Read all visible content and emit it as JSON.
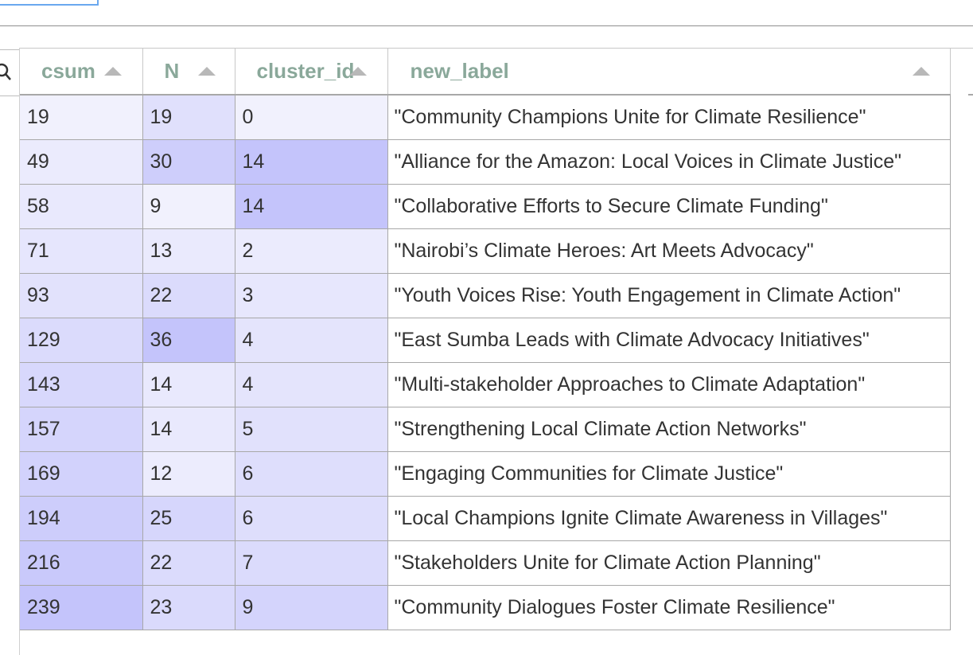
{
  "table": {
    "columns": [
      {
        "key": "csum",
        "label": "csum"
      },
      {
        "key": "N",
        "label": "N"
      },
      {
        "key": "cluster_id",
        "label": "cluster_id"
      },
      {
        "key": "new_label",
        "label": "new_label"
      }
    ],
    "rows": [
      {
        "csum": "19",
        "N": "19",
        "cluster_id": "0",
        "new_label": "\"Community Champions Unite for Climate Resilience\""
      },
      {
        "csum": "49",
        "N": "30",
        "cluster_id": "14",
        "new_label": "\"Alliance for the Amazon: Local Voices in Climate Justice\""
      },
      {
        "csum": "58",
        "N": "9",
        "cluster_id": "14",
        "new_label": "\"Collaborative Efforts to Secure Climate Funding\""
      },
      {
        "csum": "71",
        "N": "13",
        "cluster_id": "2",
        "new_label": "\"Nairobi’s Climate Heroes: Art Meets Advocacy\""
      },
      {
        "csum": "93",
        "N": "22",
        "cluster_id": "3",
        "new_label": "\"Youth Voices Rise: Youth Engagement in Climate Action\""
      },
      {
        "csum": "129",
        "N": "36",
        "cluster_id": "4",
        "new_label": "\"East Sumba Leads with Climate Advocacy Initiatives\""
      },
      {
        "csum": "143",
        "N": "14",
        "cluster_id": "4",
        "new_label": "\"Multi-stakeholder Approaches to Climate Adaptation\""
      },
      {
        "csum": "157",
        "N": "14",
        "cluster_id": "5",
        "new_label": "\"Strengthening Local Climate Action Networks\""
      },
      {
        "csum": "169",
        "N": "12",
        "cluster_id": "6",
        "new_label": "\"Engaging Communities for Climate Justice\""
      },
      {
        "csum": "194",
        "N": "25",
        "cluster_id": "6",
        "new_label": "\"Local Champions Ignite Climate Awareness in Villages\""
      },
      {
        "csum": "216",
        "N": "22",
        "cluster_id": "7",
        "new_label": "\"Stakeholders Unite for Climate Action Planning\""
      },
      {
        "csum": "239",
        "N": "23",
        "cluster_id": "9",
        "new_label": "\"Community Dialogues Foster Climate Resilience\""
      }
    ]
  },
  "colors": {
    "header_text": "#8aa89a",
    "heat_low": "#f1f1fd",
    "heat_high": "#c4c4fb",
    "grid_line": "#a8a8a8"
  },
  "icons": {
    "search": "search-icon",
    "sort": "sort-ascending-icon"
  }
}
